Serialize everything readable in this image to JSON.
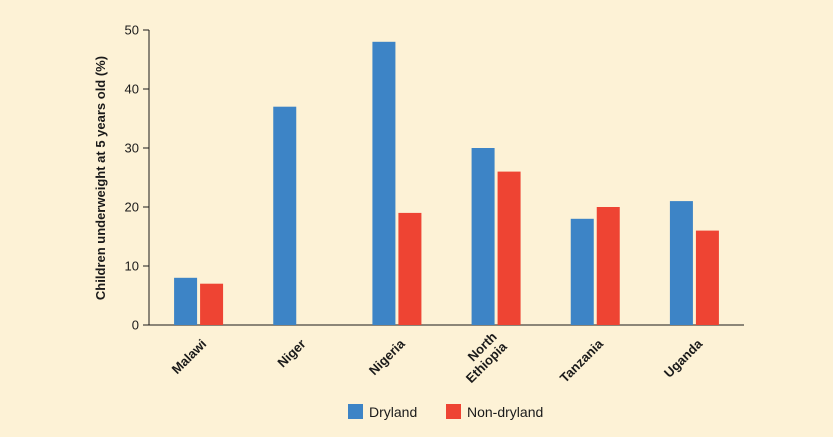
{
  "chart_data": {
    "type": "bar",
    "title": "",
    "xlabel": "",
    "ylabel": "Children underweight at 5 years old (%)",
    "ylim": [
      0,
      50
    ],
    "yticks": [
      0,
      10,
      20,
      30,
      40,
      50
    ],
    "categories": [
      [
        "Malawi"
      ],
      [
        "Niger"
      ],
      [
        "Nigeria"
      ],
      [
        "North",
        "Ethiopia"
      ],
      [
        "Tanzania"
      ],
      [
        "Uganda"
      ]
    ],
    "series": [
      {
        "name": "Dryland",
        "color": "#3d84c6",
        "values": [
          8,
          37,
          48,
          30,
          18,
          21
        ]
      },
      {
        "name": "Non-dryland",
        "color": "#ee4433",
        "values": [
          7,
          null,
          19,
          26,
          20,
          16
        ]
      }
    ],
    "grid": false,
    "legend_position": "bottom-center"
  }
}
